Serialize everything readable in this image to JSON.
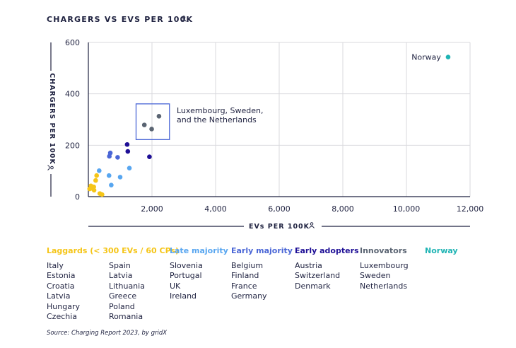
{
  "chart_data": {
    "type": "scatter",
    "title": "CHARGERS VS EVS PER 100K",
    "xlabel": "EVs PER 100K",
    "ylabel": "CHARGERS PER 100K",
    "xlim": [
      0,
      12000
    ],
    "ylim": [
      0,
      600
    ],
    "xticks": [
      2000,
      4000,
      6000,
      8000,
      10000,
      12000
    ],
    "xtick_labels": [
      "2,000",
      "4,000",
      "6,000",
      "8,000",
      "10,000",
      "12,000"
    ],
    "yticks": [
      0,
      200,
      400,
      600
    ],
    "ytick_labels": [
      "0",
      "200",
      "400",
      "600"
    ],
    "grid": true,
    "series": [
      {
        "name": "Laggards (< 300 EVs / 60 CPs)",
        "color": "#f5c518",
        "points": [
          [
            40,
            30
          ],
          [
            80,
            42
          ],
          [
            120,
            32
          ],
          [
            170,
            38
          ],
          [
            230,
            63
          ],
          [
            260,
            82
          ],
          [
            360,
            12
          ],
          [
            430,
            8
          ],
          [
            180,
            25
          ]
        ]
      },
      {
        "name": "Late majority",
        "color": "#58a6f0",
        "points": [
          [
            340,
            101
          ],
          [
            650,
            82
          ],
          [
            720,
            45
          ],
          [
            1000,
            76
          ],
          [
            1290,
            111
          ]
        ]
      },
      {
        "name": "Early majority",
        "color": "#4a66d6",
        "points": [
          [
            660,
            157
          ],
          [
            690,
            170
          ],
          [
            920,
            153
          ]
        ]
      },
      {
        "name": "Early adopters",
        "color": "#1e0f96",
        "points": [
          [
            1220,
            203
          ],
          [
            1240,
            176
          ],
          [
            1920,
            155
          ]
        ]
      },
      {
        "name": "Innovators",
        "color": "#5a6472",
        "points": [
          [
            1760,
            279
          ],
          [
            1990,
            263
          ],
          [
            2220,
            313
          ]
        ]
      },
      {
        "name": "Norway",
        "color": "#1fb4b4",
        "points": [
          [
            11310,
            543
          ]
        ]
      }
    ],
    "annotations": [
      {
        "text": "Norway",
        "x": 11310,
        "y": 543
      },
      {
        "text": "Luxembourg, Sweden,",
        "x": 2300,
        "y": 335
      },
      {
        "text": "and the Netherlands",
        "x": 2300,
        "y": 310
      }
    ],
    "highlight_box": {
      "x0": 1500,
      "x1": 2550,
      "y0": 222,
      "y1": 361
    }
  },
  "legend": [
    {
      "heading": "Laggards (< 300 EVs / 60 CPs)",
      "color": "#f5c518",
      "items": [
        "Italy",
        "Estonia",
        "Croatia",
        "Latvia",
        "Hungary",
        "Czechia"
      ]
    },
    {
      "heading": "",
      "color": "#f5c518",
      "items": [
        "Spain",
        "Latvia",
        "Lithuania",
        "Greece",
        "Poland",
        "Romania"
      ]
    },
    {
      "heading": "Late majority",
      "color": "#58a6f0",
      "items": [
        "Slovenia",
        "Portugal",
        "UK",
        "Ireland"
      ]
    },
    {
      "heading": "Early majority",
      "color": "#4a66d6",
      "items": [
        "Belgium",
        "Finland",
        "France",
        "Germany"
      ]
    },
    {
      "heading": "Early adopters",
      "color": "#1e0f96",
      "items": [
        "Austria",
        "Switzerland",
        "Denmark"
      ]
    },
    {
      "heading": "Innovators",
      "color": "#5a6472",
      "items": [
        "Luxembourg",
        "Sweden",
        "Netherlands"
      ]
    },
    {
      "heading": "Norway",
      "color": "#1fb4b4",
      "items": []
    }
  ],
  "source": "Source: Charging Report 2023, by gridX"
}
